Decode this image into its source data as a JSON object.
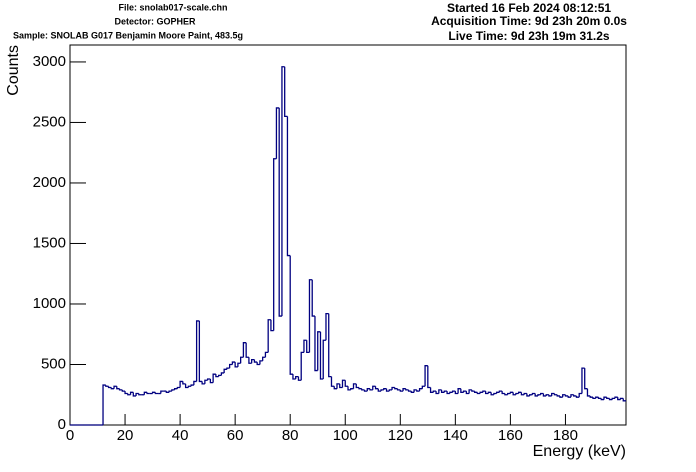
{
  "chart_data": {
    "type": "histogram",
    "header_left": [
      "File: snolab017-scale.chn",
      "Detector: GOPHER",
      "Sample: SNOLAB G017 Benjamin Moore Paint, 483.5g"
    ],
    "header_right": [
      "Started 16 Feb 2024 08:12:51",
      "Acquisition Time: 9d 23h 20m 0.0s",
      "Live Time: 9d 23h 19m 31.2s"
    ],
    "x_label": "Energy (keV)",
    "y_label": "Counts",
    "color": "#000080",
    "xlim": [
      0,
      202
    ],
    "ylim": [
      0,
      3140
    ],
    "xticks": [
      0,
      20,
      40,
      60,
      80,
      100,
      120,
      140,
      160,
      180
    ],
    "yticks": [
      0,
      500,
      1000,
      1500,
      2000,
      2500,
      3000
    ],
    "bins": [
      0,
      1,
      2,
      3,
      4,
      5,
      6,
      7,
      8,
      9,
      10,
      11,
      12,
      13,
      14,
      15,
      16,
      17,
      18,
      19,
      20,
      21,
      22,
      23,
      24,
      25,
      26,
      27,
      28,
      29,
      30,
      31,
      32,
      33,
      34,
      35,
      36,
      37,
      38,
      39,
      40,
      41,
      42,
      43,
      44,
      45,
      46,
      47,
      48,
      49,
      50,
      51,
      52,
      53,
      54,
      55,
      56,
      57,
      58,
      59,
      60,
      61,
      62,
      63,
      64,
      65,
      66,
      67,
      68,
      69,
      70,
      71,
      72,
      73,
      74,
      75,
      76,
      77,
      78,
      79,
      80,
      81,
      82,
      83,
      84,
      85,
      86,
      87,
      88,
      89,
      90,
      91,
      92,
      93,
      94,
      95,
      96,
      97,
      98,
      99,
      100,
      101,
      102,
      103,
      104,
      105,
      106,
      107,
      108,
      109,
      110,
      111,
      112,
      113,
      114,
      115,
      116,
      117,
      118,
      119,
      120,
      121,
      122,
      123,
      124,
      125,
      126,
      127,
      128,
      129,
      130,
      131,
      132,
      133,
      134,
      135,
      136,
      137,
      138,
      139,
      140,
      141,
      142,
      143,
      144,
      145,
      146,
      147,
      148,
      149,
      150,
      151,
      152,
      153,
      154,
      155,
      156,
      157,
      158,
      159,
      160,
      161,
      162,
      163,
      164,
      165,
      166,
      167,
      168,
      169,
      170,
      171,
      172,
      173,
      174,
      175,
      176,
      177,
      178,
      179,
      180,
      181,
      182,
      183,
      184,
      185,
      186,
      187,
      188,
      189,
      190,
      191,
      192,
      193,
      194,
      195,
      196,
      197,
      198,
      199,
      200,
      201,
      202
    ],
    "counts": [
      0,
      0,
      0,
      0,
      0,
      0,
      0,
      0,
      0,
      0,
      0,
      0,
      330,
      320,
      310,
      300,
      320,
      300,
      290,
      280,
      260,
      250,
      270,
      240,
      260,
      250,
      250,
      270,
      260,
      260,
      270,
      260,
      260,
      280,
      280,
      270,
      280,
      290,
      300,
      310,
      360,
      340,
      310,
      320,
      330,
      360,
      860,
      360,
      340,
      370,
      380,
      350,
      420,
      400,
      410,
      430,
      460,
      470,
      500,
      520,
      480,
      510,
      560,
      680,
      560,
      510,
      540,
      520,
      500,
      530,
      560,
      600,
      870,
      780,
      2200,
      2620,
      900,
      2960,
      2550,
      1400,
      420,
      380,
      400,
      370,
      600,
      700,
      600,
      1200,
      900,
      450,
      770,
      380,
      700,
      920,
      400,
      320,
      300,
      340,
      310,
      370,
      320,
      290,
      300,
      340,
      310,
      300,
      290,
      280,
      300,
      290,
      320,
      300,
      280,
      290,
      300,
      280,
      290,
      310,
      300,
      290,
      280,
      300,
      290,
      280,
      270,
      290,
      280,
      300,
      320,
      490,
      310,
      270,
      280,
      260,
      290,
      270,
      280,
      260,
      270,
      280,
      260,
      300,
      270,
      280,
      260,
      290,
      280,
      270,
      260,
      270,
      280,
      260,
      270,
      250,
      260,
      270,
      280,
      260,
      250,
      260,
      270,
      250,
      260,
      270,
      250,
      260,
      240,
      250,
      260,
      240,
      250,
      260,
      240,
      250,
      240,
      260,
      250,
      240,
      230,
      250,
      240,
      230,
      250,
      240,
      230,
      260,
      470,
      300,
      240,
      230,
      220,
      230,
      220,
      210,
      230,
      220,
      210,
      220,
      230,
      210,
      220,
      200
    ]
  }
}
